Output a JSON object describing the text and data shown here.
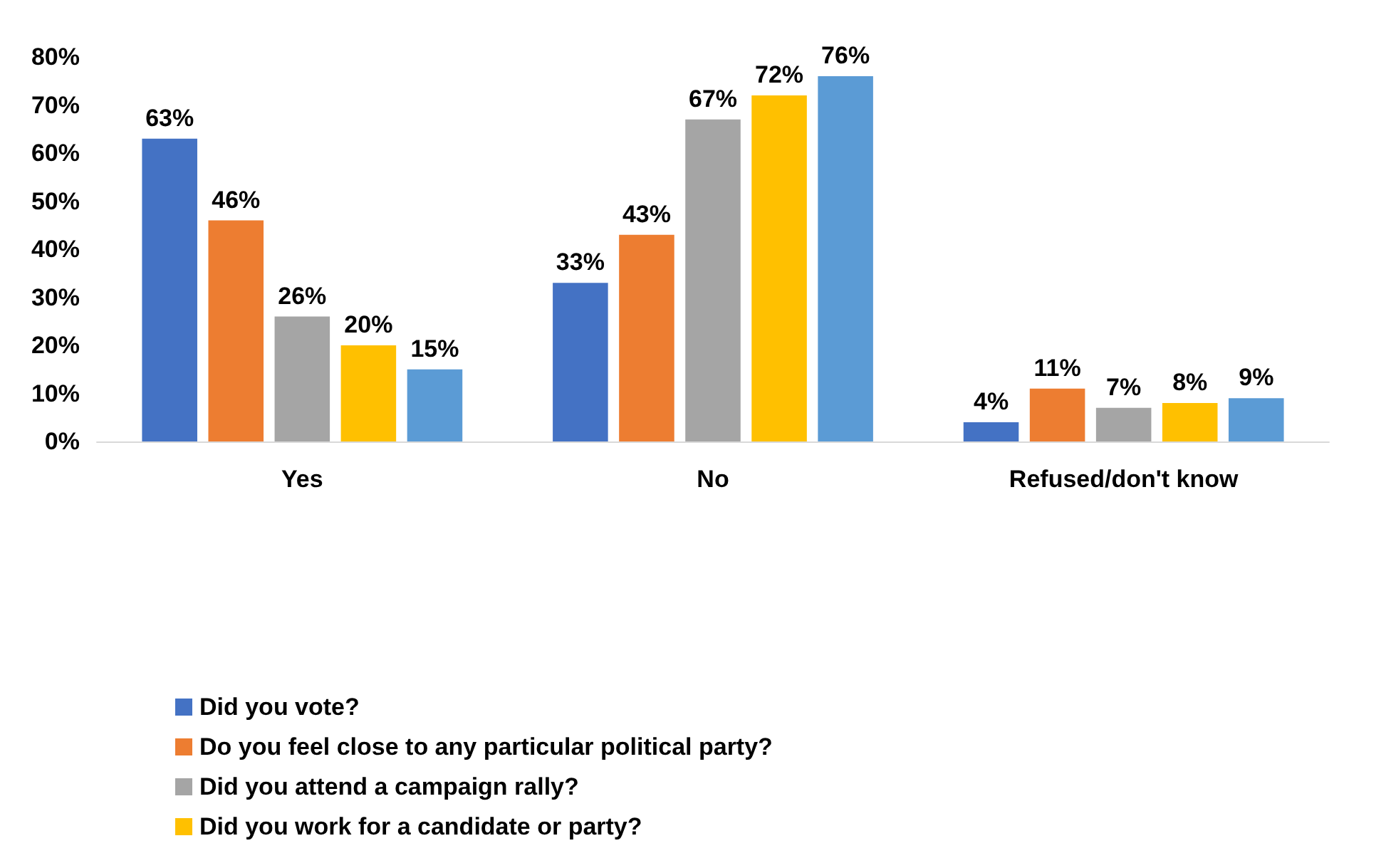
{
  "chart_data": {
    "type": "bar",
    "categories": [
      "Yes",
      "No",
      "Refused/don't know"
    ],
    "series": [
      {
        "name": "Did you vote?",
        "color": "#4472c4",
        "values": [
          63,
          33,
          4
        ],
        "value_labels": [
          "63%",
          "33%",
          "4%"
        ]
      },
      {
        "name": "Do you feel close to any particular political party?",
        "color": "#ed7d31",
        "values": [
          46,
          43,
          11
        ],
        "value_labels": [
          "46%",
          "43%",
          "11%"
        ]
      },
      {
        "name": "Did you attend a campaign rally?",
        "color": "#a5a5a5",
        "values": [
          26,
          67,
          7
        ],
        "value_labels": [
          "26%",
          "67%",
          "7%"
        ]
      },
      {
        "name": "Did you work for a candidate or party?",
        "color": "#ffc000",
        "values": [
          20,
          72,
          8
        ],
        "value_labels": [
          "20%",
          "72%",
          "8%"
        ]
      },
      {
        "color": "#5b9bd5",
        "values": [
          15,
          76,
          9
        ],
        "value_labels": [
          "15%",
          "76%",
          "9%"
        ]
      }
    ],
    "ylim": [
      0,
      80
    ],
    "yticks": [
      {
        "value": 0,
        "label": "0%"
      },
      {
        "value": 10,
        "label": "10%"
      },
      {
        "value": 20,
        "label": "20%"
      },
      {
        "value": 30,
        "label": "30%"
      },
      {
        "value": 40,
        "label": "40%"
      },
      {
        "value": 50,
        "label": "50%"
      },
      {
        "value": 60,
        "label": "60%"
      },
      {
        "value": 70,
        "label": "70%"
      },
      {
        "value": 80,
        "label": "80%"
      }
    ],
    "grid": false,
    "legend": "bottom"
  }
}
